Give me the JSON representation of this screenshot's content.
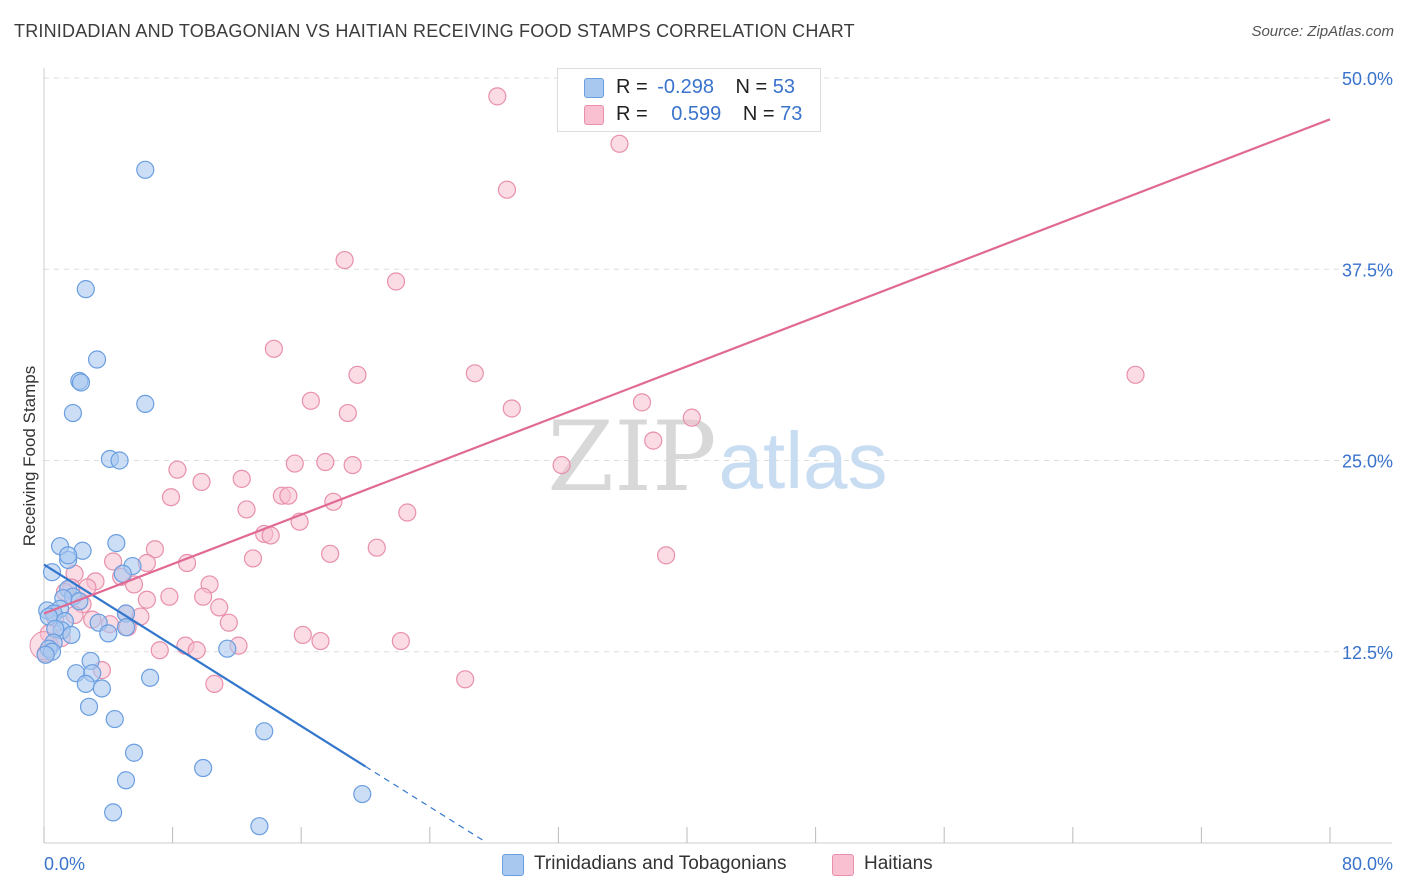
{
  "title": "TRINIDADIAN AND TOBAGONIAN VS HAITIAN RECEIVING FOOD STAMPS CORRELATION CHART",
  "source": "Source: ZipAtlas.com",
  "watermark": {
    "zip": "ZIP",
    "atlas": "atlas"
  },
  "stats": {
    "series1": {
      "r_label": "R =",
      "r_value": "-0.298",
      "n_label": "N =",
      "n_value": "53"
    },
    "series2": {
      "r_label": "R =",
      "r_value": "0.599",
      "n_label": "N =",
      "n_value": "73"
    }
  },
  "legend": {
    "series1": "Trinidadians and Tobagonians",
    "series2": "Haitians"
  },
  "colors": {
    "series1_fill": "#a8c8f0",
    "series1_stroke": "#6a9ee0",
    "series1_line": "#3377cc",
    "series2_fill": "#f8c0d0",
    "series2_stroke": "#e890aa",
    "series2_line": "#e06a94",
    "axis_text": "#3a73cc",
    "grid": "#dddddd"
  },
  "chart_data": {
    "type": "scatter",
    "title": "TRINIDADIAN AND TOBAGONIAN VS HAITIAN RECEIVING FOOD STAMPS CORRELATION CHART",
    "xlabel": "",
    "ylabel": "Receiving Food Stamps",
    "xlim": [
      0,
      80
    ],
    "ylim": [
      0,
      50
    ],
    "x_tick_labels": [
      "0.0%",
      "80.0%"
    ],
    "y_ticks": [
      12.5,
      25.0,
      37.5,
      50.0
    ],
    "y_tick_labels": [
      "12.5%",
      "25.0%",
      "37.5%",
      "50.0%"
    ],
    "grid": true,
    "legend_position": "bottom",
    "series": [
      {
        "name": "Trinidadians and Tobagonians",
        "r": -0.298,
        "n": 53,
        "trend": {
          "x0": 0.0,
          "y0": 18.2,
          "x1": 20.0,
          "y1": 5.0,
          "dash_to_x": 27.5
        },
        "points": [
          [
            6.3,
            44.0
          ],
          [
            2.6,
            36.2
          ],
          [
            3.3,
            31.6
          ],
          [
            2.2,
            30.2
          ],
          [
            2.3,
            30.1
          ],
          [
            1.8,
            28.1
          ],
          [
            6.3,
            28.7
          ],
          [
            4.1,
            25.1
          ],
          [
            4.7,
            25.0
          ],
          [
            1.0,
            19.4
          ],
          [
            1.5,
            18.5
          ],
          [
            2.4,
            19.1
          ],
          [
            4.5,
            19.6
          ],
          [
            1.5,
            18.8
          ],
          [
            5.5,
            18.1
          ],
          [
            0.5,
            17.7
          ],
          [
            4.9,
            17.6
          ],
          [
            1.5,
            16.6
          ],
          [
            0.2,
            15.2
          ],
          [
            1.8,
            16.1
          ],
          [
            2.2,
            15.8
          ],
          [
            1.2,
            16.0
          ],
          [
            1.0,
            15.3
          ],
          [
            0.6,
            15.0
          ],
          [
            0.3,
            14.8
          ],
          [
            1.3,
            14.5
          ],
          [
            5.1,
            15.0
          ],
          [
            1.1,
            13.9
          ],
          [
            0.7,
            14.0
          ],
          [
            3.4,
            14.4
          ],
          [
            5.1,
            14.1
          ],
          [
            4.0,
            13.7
          ],
          [
            1.7,
            13.6
          ],
          [
            0.6,
            13.1
          ],
          [
            0.3,
            12.7
          ],
          [
            0.5,
            12.5
          ],
          [
            2.9,
            11.9
          ],
          [
            2.0,
            11.1
          ],
          [
            3.0,
            11.1
          ],
          [
            2.6,
            10.4
          ],
          [
            6.6,
            10.8
          ],
          [
            3.6,
            10.1
          ],
          [
            11.4,
            12.7
          ],
          [
            2.8,
            8.9
          ],
          [
            4.4,
            8.1
          ],
          [
            13.7,
            7.3
          ],
          [
            5.6,
            5.9
          ],
          [
            5.1,
            4.1
          ],
          [
            9.9,
            4.9
          ],
          [
            19.8,
            3.2
          ],
          [
            4.3,
            2.0
          ],
          [
            13.4,
            1.1
          ],
          [
            0.1,
            12.3
          ]
        ]
      },
      {
        "name": "Haitians",
        "r": 0.599,
        "n": 73,
        "trend": {
          "x0": 0.0,
          "y0": 15.0,
          "x1": 80.0,
          "y1": 47.3
        },
        "points": [
          [
            28.2,
            48.8
          ],
          [
            35.8,
            45.7
          ],
          [
            28.8,
            42.7
          ],
          [
            18.7,
            38.1
          ],
          [
            21.9,
            36.7
          ],
          [
            14.3,
            32.3
          ],
          [
            26.8,
            30.7
          ],
          [
            19.5,
            30.6
          ],
          [
            67.9,
            30.6
          ],
          [
            16.6,
            28.9
          ],
          [
            29.1,
            28.4
          ],
          [
            18.9,
            28.1
          ],
          [
            37.2,
            28.8
          ],
          [
            40.3,
            27.8
          ],
          [
            37.9,
            26.3
          ],
          [
            32.2,
            24.7
          ],
          [
            15.6,
            24.8
          ],
          [
            17.5,
            24.9
          ],
          [
            19.2,
            24.7
          ],
          [
            8.3,
            24.4
          ],
          [
            9.8,
            23.6
          ],
          [
            12.3,
            23.8
          ],
          [
            7.9,
            22.6
          ],
          [
            14.8,
            22.7
          ],
          [
            15.2,
            22.7
          ],
          [
            18.0,
            22.3
          ],
          [
            12.6,
            21.8
          ],
          [
            22.6,
            21.6
          ],
          [
            15.9,
            21.0
          ],
          [
            13.7,
            20.2
          ],
          [
            14.1,
            20.1
          ],
          [
            6.9,
            19.2
          ],
          [
            20.7,
            19.3
          ],
          [
            17.8,
            18.9
          ],
          [
            38.7,
            18.8
          ],
          [
            13.0,
            18.6
          ],
          [
            4.3,
            18.4
          ],
          [
            6.4,
            18.3
          ],
          [
            8.9,
            18.3
          ],
          [
            1.9,
            17.6
          ],
          [
            4.8,
            17.4
          ],
          [
            3.2,
            17.1
          ],
          [
            5.6,
            16.9
          ],
          [
            10.3,
            16.9
          ],
          [
            1.7,
            16.7
          ],
          [
            2.7,
            16.7
          ],
          [
            1.3,
            16.4
          ],
          [
            7.8,
            16.1
          ],
          [
            9.9,
            16.1
          ],
          [
            6.4,
            15.9
          ],
          [
            2.4,
            15.6
          ],
          [
            10.9,
            15.4
          ],
          [
            5.1,
            15.0
          ],
          [
            1.9,
            14.9
          ],
          [
            6.0,
            14.8
          ],
          [
            0.7,
            14.7
          ],
          [
            3.0,
            14.6
          ],
          [
            11.5,
            14.4
          ],
          [
            4.1,
            14.3
          ],
          [
            5.2,
            14.1
          ],
          [
            0.3,
            13.7
          ],
          [
            16.1,
            13.6
          ],
          [
            1.1,
            13.4
          ],
          [
            17.2,
            13.2
          ],
          [
            22.2,
            13.2
          ],
          [
            8.8,
            12.9
          ],
          [
            12.1,
            12.9
          ],
          [
            7.2,
            12.6
          ],
          [
            9.5,
            12.6
          ],
          [
            3.6,
            11.3
          ],
          [
            10.6,
            10.4
          ],
          [
            26.2,
            10.7
          ],
          [
            0.1,
            12.4
          ]
        ]
      }
    ]
  }
}
